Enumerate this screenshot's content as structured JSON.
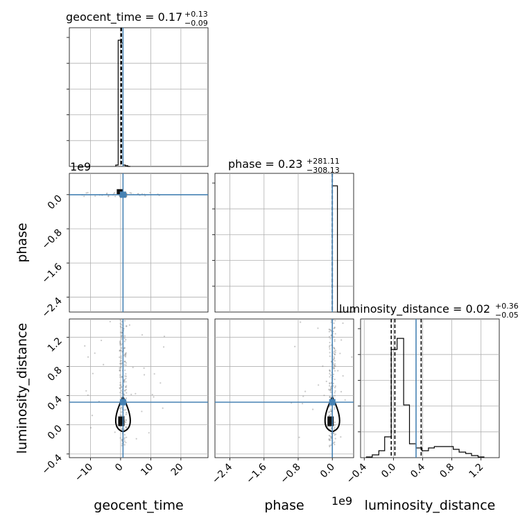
{
  "chart_data": {
    "type": "corner",
    "truth_color": "#4682b4",
    "line_color": "#000000",
    "grid": true,
    "params": [
      {
        "name": "geocent_time",
        "title": {
          "prefix": "geocent_time = 0.17",
          "sup": "+0.13",
          "sub": "−0.09"
        },
        "range": [
          -17,
          29
        ],
        "ticks": [
          -10,
          0,
          10,
          20
        ],
        "tick_labels": [
          "−10",
          "0",
          "10",
          "20"
        ],
        "truth": 0.8,
        "quantiles": [
          0.08,
          0.17,
          0.3
        ],
        "hist_bins": [
          -1.6,
          -0.8,
          0.0,
          0.8,
          1.6,
          2.4,
          3.2
        ],
        "hist_counts": [
          0.01,
          0.91,
          0.89,
          0.01,
          0.005,
          0.0
        ]
      },
      {
        "name": "phase",
        "offset_label": "1e9",
        "title": {
          "prefix": "phase = 0.23",
          "sup": "+281.11",
          "sub": "−308.13"
        },
        "range": [
          -2.75,
          0.5
        ],
        "ticks": [
          -2.4,
          -1.6,
          -0.8,
          0.0
        ],
        "tick_labels": [
          "−2.4",
          "−1.6",
          "−0.8",
          "0.0"
        ],
        "truth": 0.0,
        "quantiles": [
          -3e-07,
          2e-07,
          3e-07
        ],
        "hist_bins": [
          0.0,
          0.12,
          0.24
        ],
        "hist_counts": [
          0.91,
          0.0
        ]
      },
      {
        "name": "luminosity_distance",
        "title": {
          "prefix": "luminosity_distance = 0.02",
          "sup": "+0.36",
          "sub": "−0.05"
        },
        "range": [
          -0.45,
          1.45
        ],
        "ticks": [
          -0.4,
          0.0,
          0.4,
          0.8,
          1.2
        ],
        "tick_labels": [
          "−0.4",
          "0.0",
          "0.4",
          "0.8",
          "1.2"
        ],
        "truth": 0.31,
        "quantiles": [
          -0.03,
          0.02,
          0.38
        ],
        "hist_bins": [
          -0.37,
          -0.29,
          -0.2,
          -0.12,
          -0.03,
          0.05,
          0.14,
          0.22,
          0.31,
          0.39,
          0.48,
          0.56,
          0.65,
          0.73,
          0.82,
          0.9,
          0.99,
          1.07,
          1.16,
          1.24
        ],
        "hist_counts": [
          0.005,
          0.02,
          0.05,
          0.15,
          0.78,
          0.86,
          0.38,
          0.1,
          0.07,
          0.05,
          0.07,
          0.08,
          0.08,
          0.08,
          0.06,
          0.04,
          0.03,
          0.015,
          0.005
        ]
      }
    ]
  }
}
